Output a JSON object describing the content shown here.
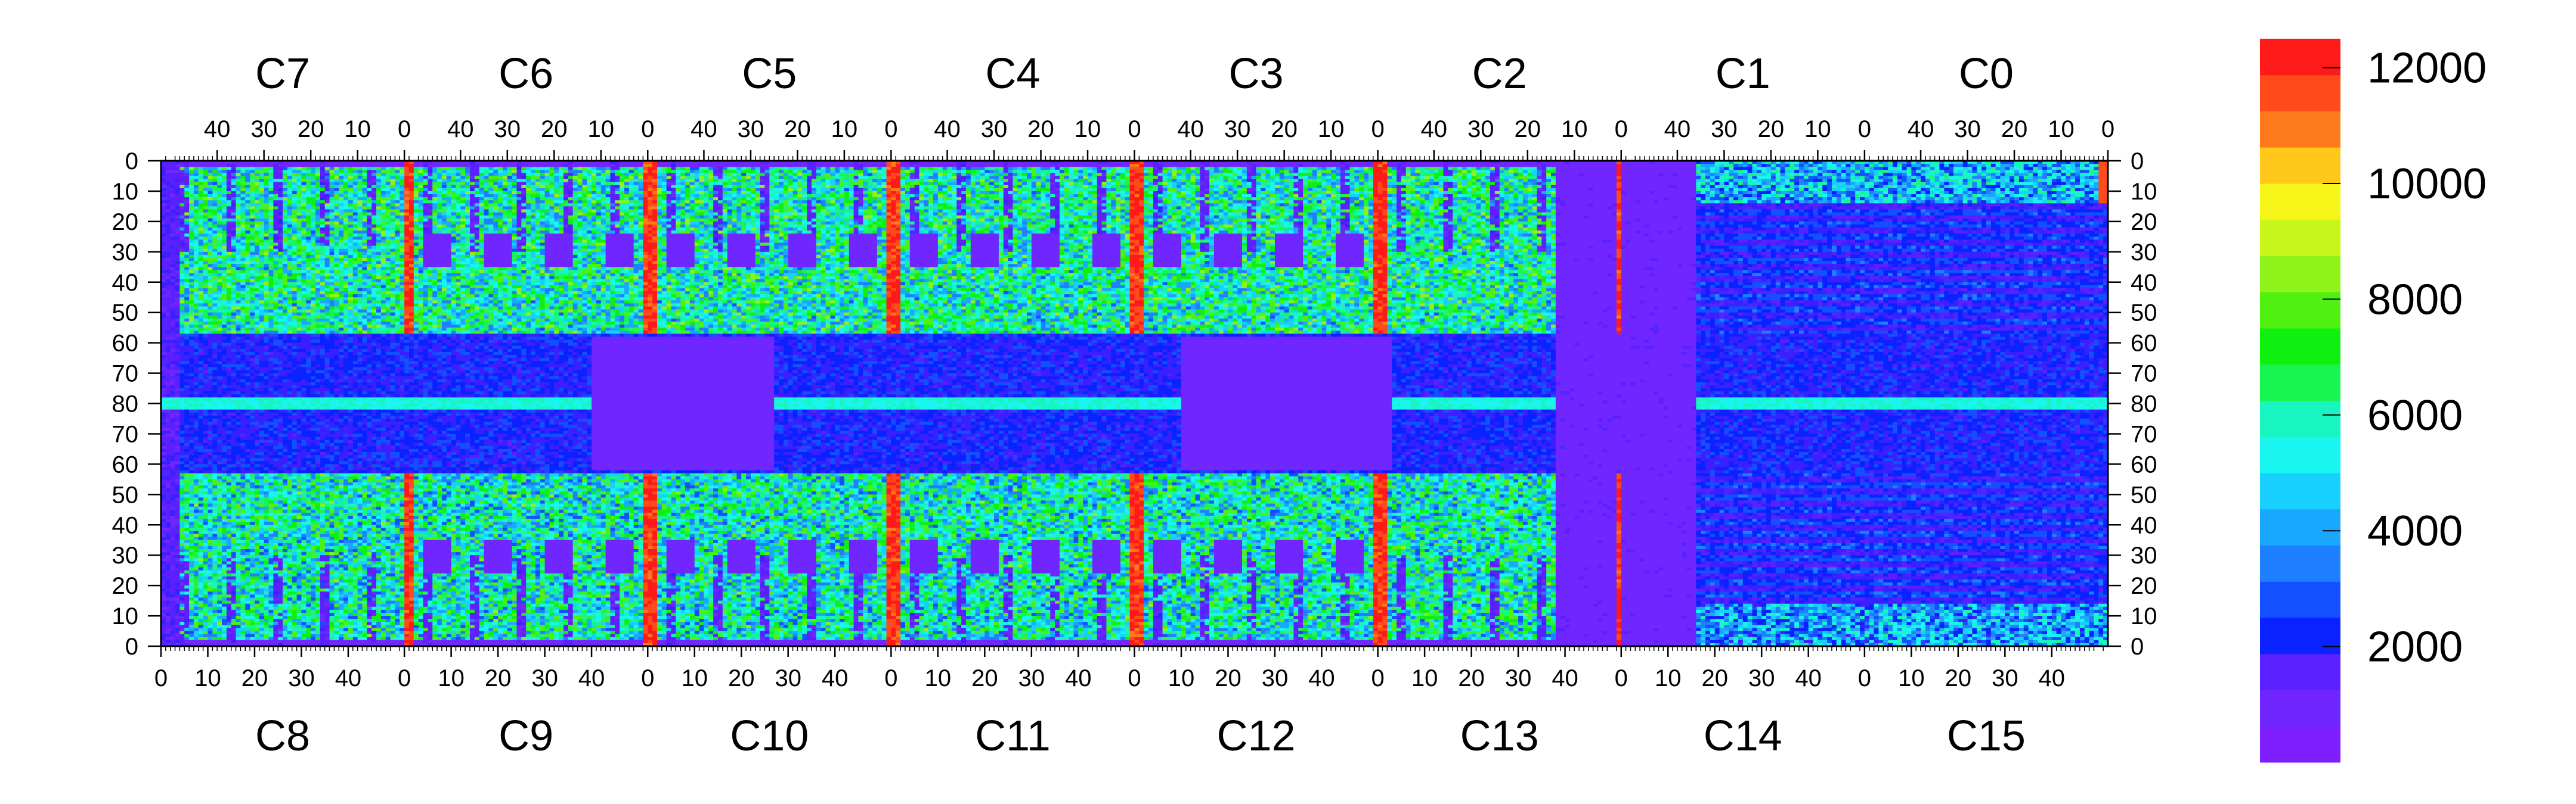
{
  "chart_data": {
    "type": "heatmap",
    "title": "",
    "top_chip_labels": [
      "C7",
      "C6",
      "C5",
      "C4",
      "C3",
      "C2",
      "C1",
      "C0"
    ],
    "bottom_chip_labels": [
      "C8",
      "C9",
      "C10",
      "C11",
      "C12",
      "C13",
      "C14",
      "C15"
    ],
    "top_column_ticks": [
      "40",
      "30",
      "20",
      "10",
      "0"
    ],
    "bottom_column_ticks": [
      "0",
      "10",
      "20",
      "30",
      "40"
    ],
    "left_row_ticks": [
      "0",
      "10",
      "20",
      "30",
      "40",
      "50",
      "60",
      "70",
      "80",
      "70",
      "60",
      "50",
      "40",
      "30",
      "20",
      "10",
      "0"
    ],
    "right_row_ticks": [
      "0",
      "10",
      "20",
      "30",
      "40",
      "50",
      "60",
      "70",
      "80",
      "70",
      "60",
      "50",
      "40",
      "30",
      "20",
      "10",
      "0"
    ],
    "columns_per_chip": 52,
    "rows_per_half": 80,
    "zlim": [
      0,
      12500
    ],
    "colorbar_ticks": [
      2000,
      4000,
      6000,
      8000,
      10000,
      12000
    ],
    "colorbar_tick_labels": [
      "2000",
      "4000",
      "6000",
      "8000",
      "10000",
      "12000"
    ],
    "colorbar_levels": 20,
    "palette": [
      "#7f1fff",
      "#7026ff",
      "#5a20ff",
      "#3a20ff",
      "#0a22ff",
      "#1350ff",
      "#1f80ff",
      "#1aa8ff",
      "#18d0ff",
      "#1af5f0",
      "#19f5c0",
      "#19f58a",
      "#19f550",
      "#10f010",
      "#50f010",
      "#8ff21a",
      "#c8f51a",
      "#f5f51a",
      "#ffc81a",
      "#ffa31a",
      "#ff7a1a",
      "#ff4a1a",
      "#ff1a1a"
    ],
    "region_means": {
      "background": 900,
      "upper_body": 5800,
      "lower_body": 5600,
      "middle_band": 1600,
      "row80_line": 5000,
      "chip_edge_columns": 12000,
      "dead_chip_C13": 800,
      "chip_C14_C1_striped": 2200,
      "corner_hot_C0": 11500,
      "low_rectangles": 700
    }
  }
}
